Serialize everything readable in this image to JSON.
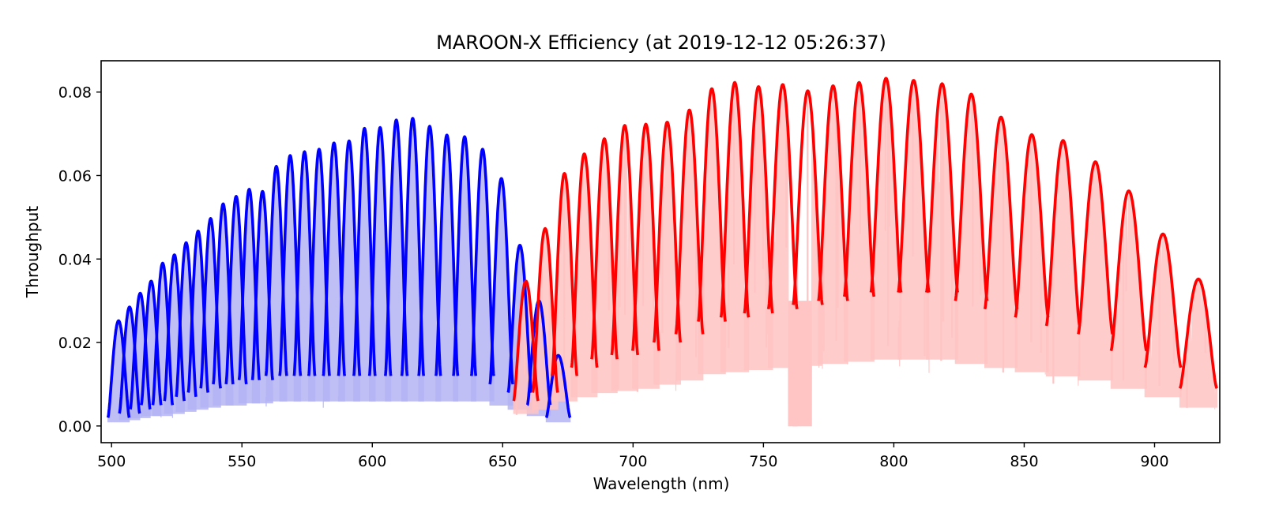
{
  "chart_data": {
    "type": "line",
    "title": "MAROON-X Efficiency (at 2019-12-12 05:26:37)",
    "xlabel": "Wavelength (nm)",
    "ylabel": "Throughput",
    "xlim": [
      496,
      925
    ],
    "ylim": [
      -0.004,
      0.0875
    ],
    "xticks": [
      500,
      550,
      600,
      650,
      700,
      750,
      800,
      850,
      900
    ],
    "yticks": [
      0.0,
      0.02,
      0.04,
      0.06,
      0.08
    ],
    "ytick_labels": [
      "0.00",
      "0.02",
      "0.04",
      "0.06",
      "0.08"
    ],
    "grid": false,
    "legend": "none",
    "series": [
      {
        "color": "#0000ff",
        "fill_color": "#b4b4f5",
        "style": "echelle-orders",
        "orders": [
          {
            "center": 502.7,
            "peak": 0.0252,
            "start": 498.6,
            "end": 506.8,
            "edge": 0.002
          },
          {
            "center": 506.9,
            "peak": 0.0285,
            "start": 503.0,
            "end": 510.8,
            "edge": 0.003
          },
          {
            "center": 511.0,
            "peak": 0.0318,
            "start": 507.2,
            "end": 514.8,
            "edge": 0.004
          },
          {
            "center": 515.2,
            "peak": 0.0347,
            "start": 511.4,
            "end": 519.0,
            "edge": 0.005
          },
          {
            "center": 519.6,
            "peak": 0.039,
            "start": 515.8,
            "end": 523.4,
            "edge": 0.005
          },
          {
            "center": 524.1,
            "peak": 0.041,
            "start": 520.3,
            "end": 527.9,
            "edge": 0.006
          },
          {
            "center": 528.6,
            "peak": 0.0439,
            "start": 524.8,
            "end": 532.4,
            "edge": 0.007
          },
          {
            "center": 533.2,
            "peak": 0.0467,
            "start": 529.4,
            "end": 537.0,
            "edge": 0.008
          },
          {
            "center": 538.0,
            "peak": 0.0497,
            "start": 534.2,
            "end": 541.8,
            "edge": 0.009
          },
          {
            "center": 542.8,
            "peak": 0.0532,
            "start": 539.0,
            "end": 546.6,
            "edge": 0.01
          },
          {
            "center": 547.8,
            "peak": 0.055,
            "start": 543.9,
            "end": 551.7,
            "edge": 0.01
          },
          {
            "center": 552.8,
            "peak": 0.0567,
            "start": 548.9,
            "end": 556.7,
            "edge": 0.011
          },
          {
            "center": 557.9,
            "peak": 0.0562,
            "start": 554.0,
            "end": 561.8,
            "edge": 0.011
          },
          {
            "center": 563.2,
            "peak": 0.0622,
            "start": 559.2,
            "end": 567.2,
            "edge": 0.012
          },
          {
            "center": 568.5,
            "peak": 0.0648,
            "start": 564.5,
            "end": 572.5,
            "edge": 0.012
          },
          {
            "center": 574.0,
            "peak": 0.0657,
            "start": 570.0,
            "end": 578.0,
            "edge": 0.012
          },
          {
            "center": 579.6,
            "peak": 0.0663,
            "start": 575.6,
            "end": 583.6,
            "edge": 0.012
          },
          {
            "center": 585.3,
            "peak": 0.0678,
            "start": 581.2,
            "end": 589.4,
            "edge": 0.012
          },
          {
            "center": 591.1,
            "peak": 0.0683,
            "start": 587.0,
            "end": 595.2,
            "edge": 0.012
          },
          {
            "center": 597.0,
            "peak": 0.0713,
            "start": 592.9,
            "end": 601.1,
            "edge": 0.012
          },
          {
            "center": 603.0,
            "peak": 0.0715,
            "start": 598.9,
            "end": 607.1,
            "edge": 0.012
          },
          {
            "center": 609.2,
            "peak": 0.0733,
            "start": 605.0,
            "end": 613.4,
            "edge": 0.012
          },
          {
            "center": 615.5,
            "peak": 0.0737,
            "start": 611.3,
            "end": 619.7,
            "edge": 0.012
          },
          {
            "center": 622.0,
            "peak": 0.0718,
            "start": 617.8,
            "end": 626.2,
            "edge": 0.012
          },
          {
            "center": 628.6,
            "peak": 0.0697,
            "start": 624.4,
            "end": 632.8,
            "edge": 0.012
          },
          {
            "center": 635.4,
            "peak": 0.0693,
            "start": 631.1,
            "end": 639.7,
            "edge": 0.012
          },
          {
            "center": 642.3,
            "peak": 0.0663,
            "start": 638.0,
            "end": 646.6,
            "edge": 0.012
          },
          {
            "center": 649.5,
            "peak": 0.0593,
            "start": 645.1,
            "end": 653.9,
            "edge": 0.01
          },
          {
            "center": 656.6,
            "peak": 0.0433,
            "start": 652.1,
            "end": 661.1,
            "edge": 0.008
          },
          {
            "center": 663.9,
            "peak": 0.03,
            "start": 659.4,
            "end": 668.3,
            "edge": 0.005
          },
          {
            "center": 671.3,
            "peak": 0.0169,
            "start": 666.7,
            "end": 675.9,
            "edge": 0.002
          }
        ]
      },
      {
        "color": "#ff0000",
        "fill_color": "#ffc4c4",
        "style": "echelle-orders",
        "orders": [
          {
            "center": 658.9,
            "peak": 0.0347,
            "start": 654.2,
            "end": 663.6,
            "edge": 0.006
          },
          {
            "center": 666.3,
            "peak": 0.0473,
            "start": 661.5,
            "end": 671.1,
            "edge": 0.008
          },
          {
            "center": 673.7,
            "peak": 0.0605,
            "start": 668.9,
            "end": 678.5,
            "edge": 0.012
          },
          {
            "center": 681.3,
            "peak": 0.0652,
            "start": 676.4,
            "end": 686.2,
            "edge": 0.014
          },
          {
            "center": 689.0,
            "peak": 0.0688,
            "start": 684.1,
            "end": 693.9,
            "edge": 0.016
          },
          {
            "center": 696.8,
            "peak": 0.072,
            "start": 691.8,
            "end": 701.8,
            "edge": 0.017
          },
          {
            "center": 704.9,
            "peak": 0.0723,
            "start": 699.8,
            "end": 710.0,
            "edge": 0.018
          },
          {
            "center": 713.1,
            "peak": 0.0728,
            "start": 708.0,
            "end": 718.2,
            "edge": 0.02
          },
          {
            "center": 721.6,
            "peak": 0.0757,
            "start": 716.4,
            "end": 726.8,
            "edge": 0.022
          },
          {
            "center": 730.2,
            "peak": 0.0808,
            "start": 725.0,
            "end": 735.4,
            "edge": 0.025
          },
          {
            "center": 739.0,
            "peak": 0.0823,
            "start": 733.7,
            "end": 744.3,
            "edge": 0.026
          },
          {
            "center": 748.1,
            "peak": 0.0813,
            "start": 742.7,
            "end": 753.5,
            "edge": 0.027
          },
          {
            "center": 757.4,
            "peak": 0.0818,
            "start": 751.9,
            "end": 762.9,
            "edge": 0.028
          },
          {
            "center": 767.0,
            "peak": 0.0803,
            "start": 761.4,
            "end": 772.6,
            "edge": 0.029
          },
          {
            "center": 776.7,
            "peak": 0.0815,
            "start": 771.1,
            "end": 782.3,
            "edge": 0.03
          },
          {
            "center": 786.7,
            "peak": 0.0823,
            "start": 781.0,
            "end": 792.4,
            "edge": 0.031
          },
          {
            "center": 797.0,
            "peak": 0.0833,
            "start": 791.2,
            "end": 802.8,
            "edge": 0.032
          },
          {
            "center": 807.6,
            "peak": 0.0828,
            "start": 801.7,
            "end": 813.5,
            "edge": 0.032
          },
          {
            "center": 818.5,
            "peak": 0.082,
            "start": 812.5,
            "end": 824.5,
            "edge": 0.032
          },
          {
            "center": 829.7,
            "peak": 0.0795,
            "start": 823.6,
            "end": 835.8,
            "edge": 0.03
          },
          {
            "center": 841.1,
            "peak": 0.074,
            "start": 834.9,
            "end": 847.3,
            "edge": 0.028
          },
          {
            "center": 852.9,
            "peak": 0.0698,
            "start": 846.6,
            "end": 859.2,
            "edge": 0.026
          },
          {
            "center": 864.9,
            "peak": 0.0684,
            "start": 858.5,
            "end": 871.3,
            "edge": 0.024
          },
          {
            "center": 877.3,
            "peak": 0.0633,
            "start": 870.7,
            "end": 883.9,
            "edge": 0.022
          },
          {
            "center": 890.1,
            "peak": 0.0563,
            "start": 883.3,
            "end": 896.9,
            "edge": 0.018
          },
          {
            "center": 903.2,
            "peak": 0.046,
            "start": 896.3,
            "end": 910.1,
            "edge": 0.014
          },
          {
            "center": 916.8,
            "peak": 0.0352,
            "start": 909.7,
            "end": 923.9,
            "edge": 0.009
          }
        ],
        "absorption_dips": [
          {
            "start": 759.5,
            "end": 768.5,
            "floor": 0.0
          }
        ]
      }
    ]
  }
}
